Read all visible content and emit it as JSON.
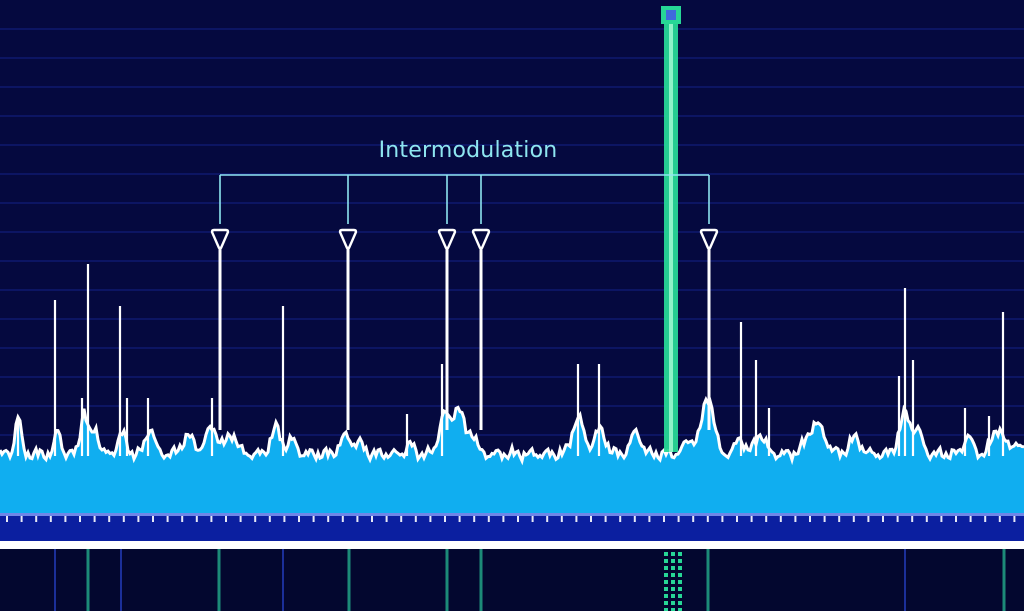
{
  "annotation": {
    "label": "Intermodulation",
    "marker_count": 5
  },
  "colors": {
    "background": "#05093f",
    "gridline": "#1a2aa0",
    "spectrum_fill": "#10aef0",
    "spectrum_outline": "#ffffff",
    "spur_line": "#ffffff",
    "carrier": "#27d796",
    "carrier_core": "#8ff2c8",
    "carrier_marker": "#3f6bdc",
    "annotation": "#8ee6f0",
    "axis_band": "#0b1fa0",
    "lower_band_marker": "#1c8a78"
  },
  "icons": {
    "marker": "down-triangle-marker-icon",
    "carrier": "carrier-square-icon"
  }
}
